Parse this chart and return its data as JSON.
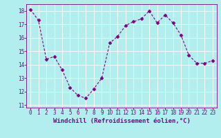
{
  "x": [
    0,
    1,
    2,
    3,
    4,
    5,
    6,
    7,
    8,
    9,
    10,
    11,
    12,
    13,
    14,
    15,
    16,
    17,
    18,
    19,
    20,
    21,
    22,
    23
  ],
  "y": [
    18.1,
    17.3,
    14.4,
    14.6,
    13.6,
    12.3,
    11.7,
    11.5,
    12.2,
    13.0,
    15.6,
    16.1,
    16.9,
    17.2,
    17.4,
    18.0,
    17.1,
    17.7,
    17.1,
    16.2,
    14.7,
    14.1,
    14.1,
    14.3
  ],
  "line_color": "#800080",
  "marker": "D",
  "marker_size": 2.5,
  "bg_color": "#b2eeee",
  "grid_color": "#ffffff",
  "xlabel": "Windchill (Refroidissement éolien,°C)",
  "xlabel_fontsize": 6.5,
  "tick_fontsize": 5.5,
  "ylim": [
    10.8,
    18.5
  ],
  "xlim": [
    -0.5,
    23.5
  ],
  "yticks": [
    11,
    12,
    13,
    14,
    15,
    16,
    17,
    18
  ],
  "xticks": [
    0,
    1,
    2,
    3,
    4,
    5,
    6,
    7,
    8,
    9,
    10,
    11,
    12,
    13,
    14,
    15,
    16,
    17,
    18,
    19,
    20,
    21,
    22,
    23
  ],
  "figsize": [
    3.2,
    2.0
  ],
  "dpi": 100
}
